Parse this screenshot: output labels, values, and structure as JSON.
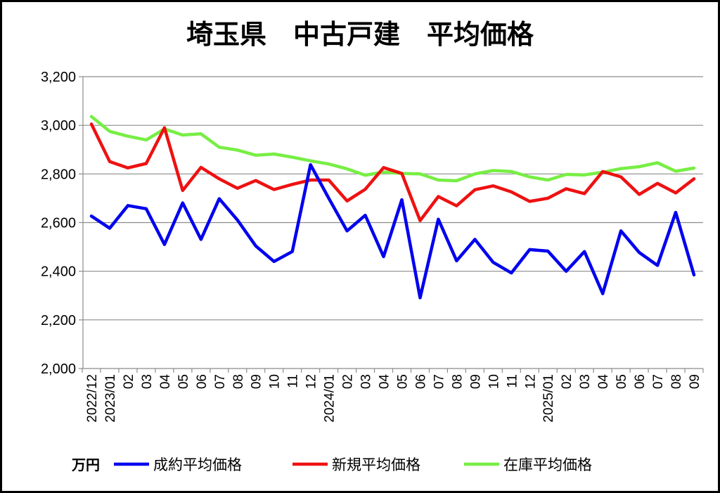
{
  "chart_data": {
    "type": "line",
    "title": "埼玉県　中古戸建　平均価格",
    "unit": "万円",
    "ylim": [
      2000,
      3200
    ],
    "yticks": [
      "2,000",
      "2,200",
      "2,400",
      "2,600",
      "2,800",
      "3,000",
      "3,200"
    ],
    "ytick_values": [
      2000,
      2200,
      2400,
      2600,
      2800,
      3000,
      3200
    ],
    "grid": true,
    "legend_position": "bottom",
    "x_labels": [
      "2022/12",
      "2023/01",
      "02",
      "03",
      "04",
      "05",
      "06",
      "07",
      "08",
      "09",
      "10",
      "11",
      "12",
      "2024/01",
      "02",
      "03",
      "04",
      "05",
      "06",
      "07",
      "08",
      "09",
      "10",
      "11",
      "12",
      "2025/01",
      "02",
      "03",
      "04",
      "05",
      "06",
      "07",
      "08",
      "09"
    ],
    "series": [
      {
        "name": "成約平均価格",
        "color": "#0000ee",
        "values": [
          2627,
          2577,
          2670,
          2657,
          2510,
          2681,
          2531,
          2698,
          2610,
          2504,
          2440,
          2481,
          2838,
          2700,
          2566,
          2630,
          2460,
          2694,
          2291,
          2614,
          2443,
          2531,
          2437,
          2393,
          2489,
          2483,
          2400,
          2481,
          2308,
          2566,
          2477,
          2424,
          2642,
          2385
        ]
      },
      {
        "name": "新規平均価格",
        "color": "#ee1111",
        "values": [
          3005,
          2851,
          2825,
          2843,
          2990,
          2732,
          2827,
          2780,
          2741,
          2773,
          2736,
          2757,
          2775,
          2775,
          2689,
          2737,
          2826,
          2802,
          2608,
          2707,
          2669,
          2735,
          2751,
          2726,
          2687,
          2700,
          2739,
          2719,
          2810,
          2788,
          2716,
          2761,
          2722,
          2780
        ]
      },
      {
        "name": "在庫平均価格",
        "color": "#77ee44",
        "values": [
          3036,
          2975,
          2955,
          2940,
          2985,
          2960,
          2965,
          2910,
          2898,
          2877,
          2882,
          2869,
          2854,
          2841,
          2821,
          2795,
          2808,
          2802,
          2800,
          2775,
          2772,
          2800,
          2814,
          2810,
          2788,
          2775,
          2798,
          2796,
          2807,
          2822,
          2830,
          2846,
          2811,
          2824
        ]
      }
    ]
  }
}
